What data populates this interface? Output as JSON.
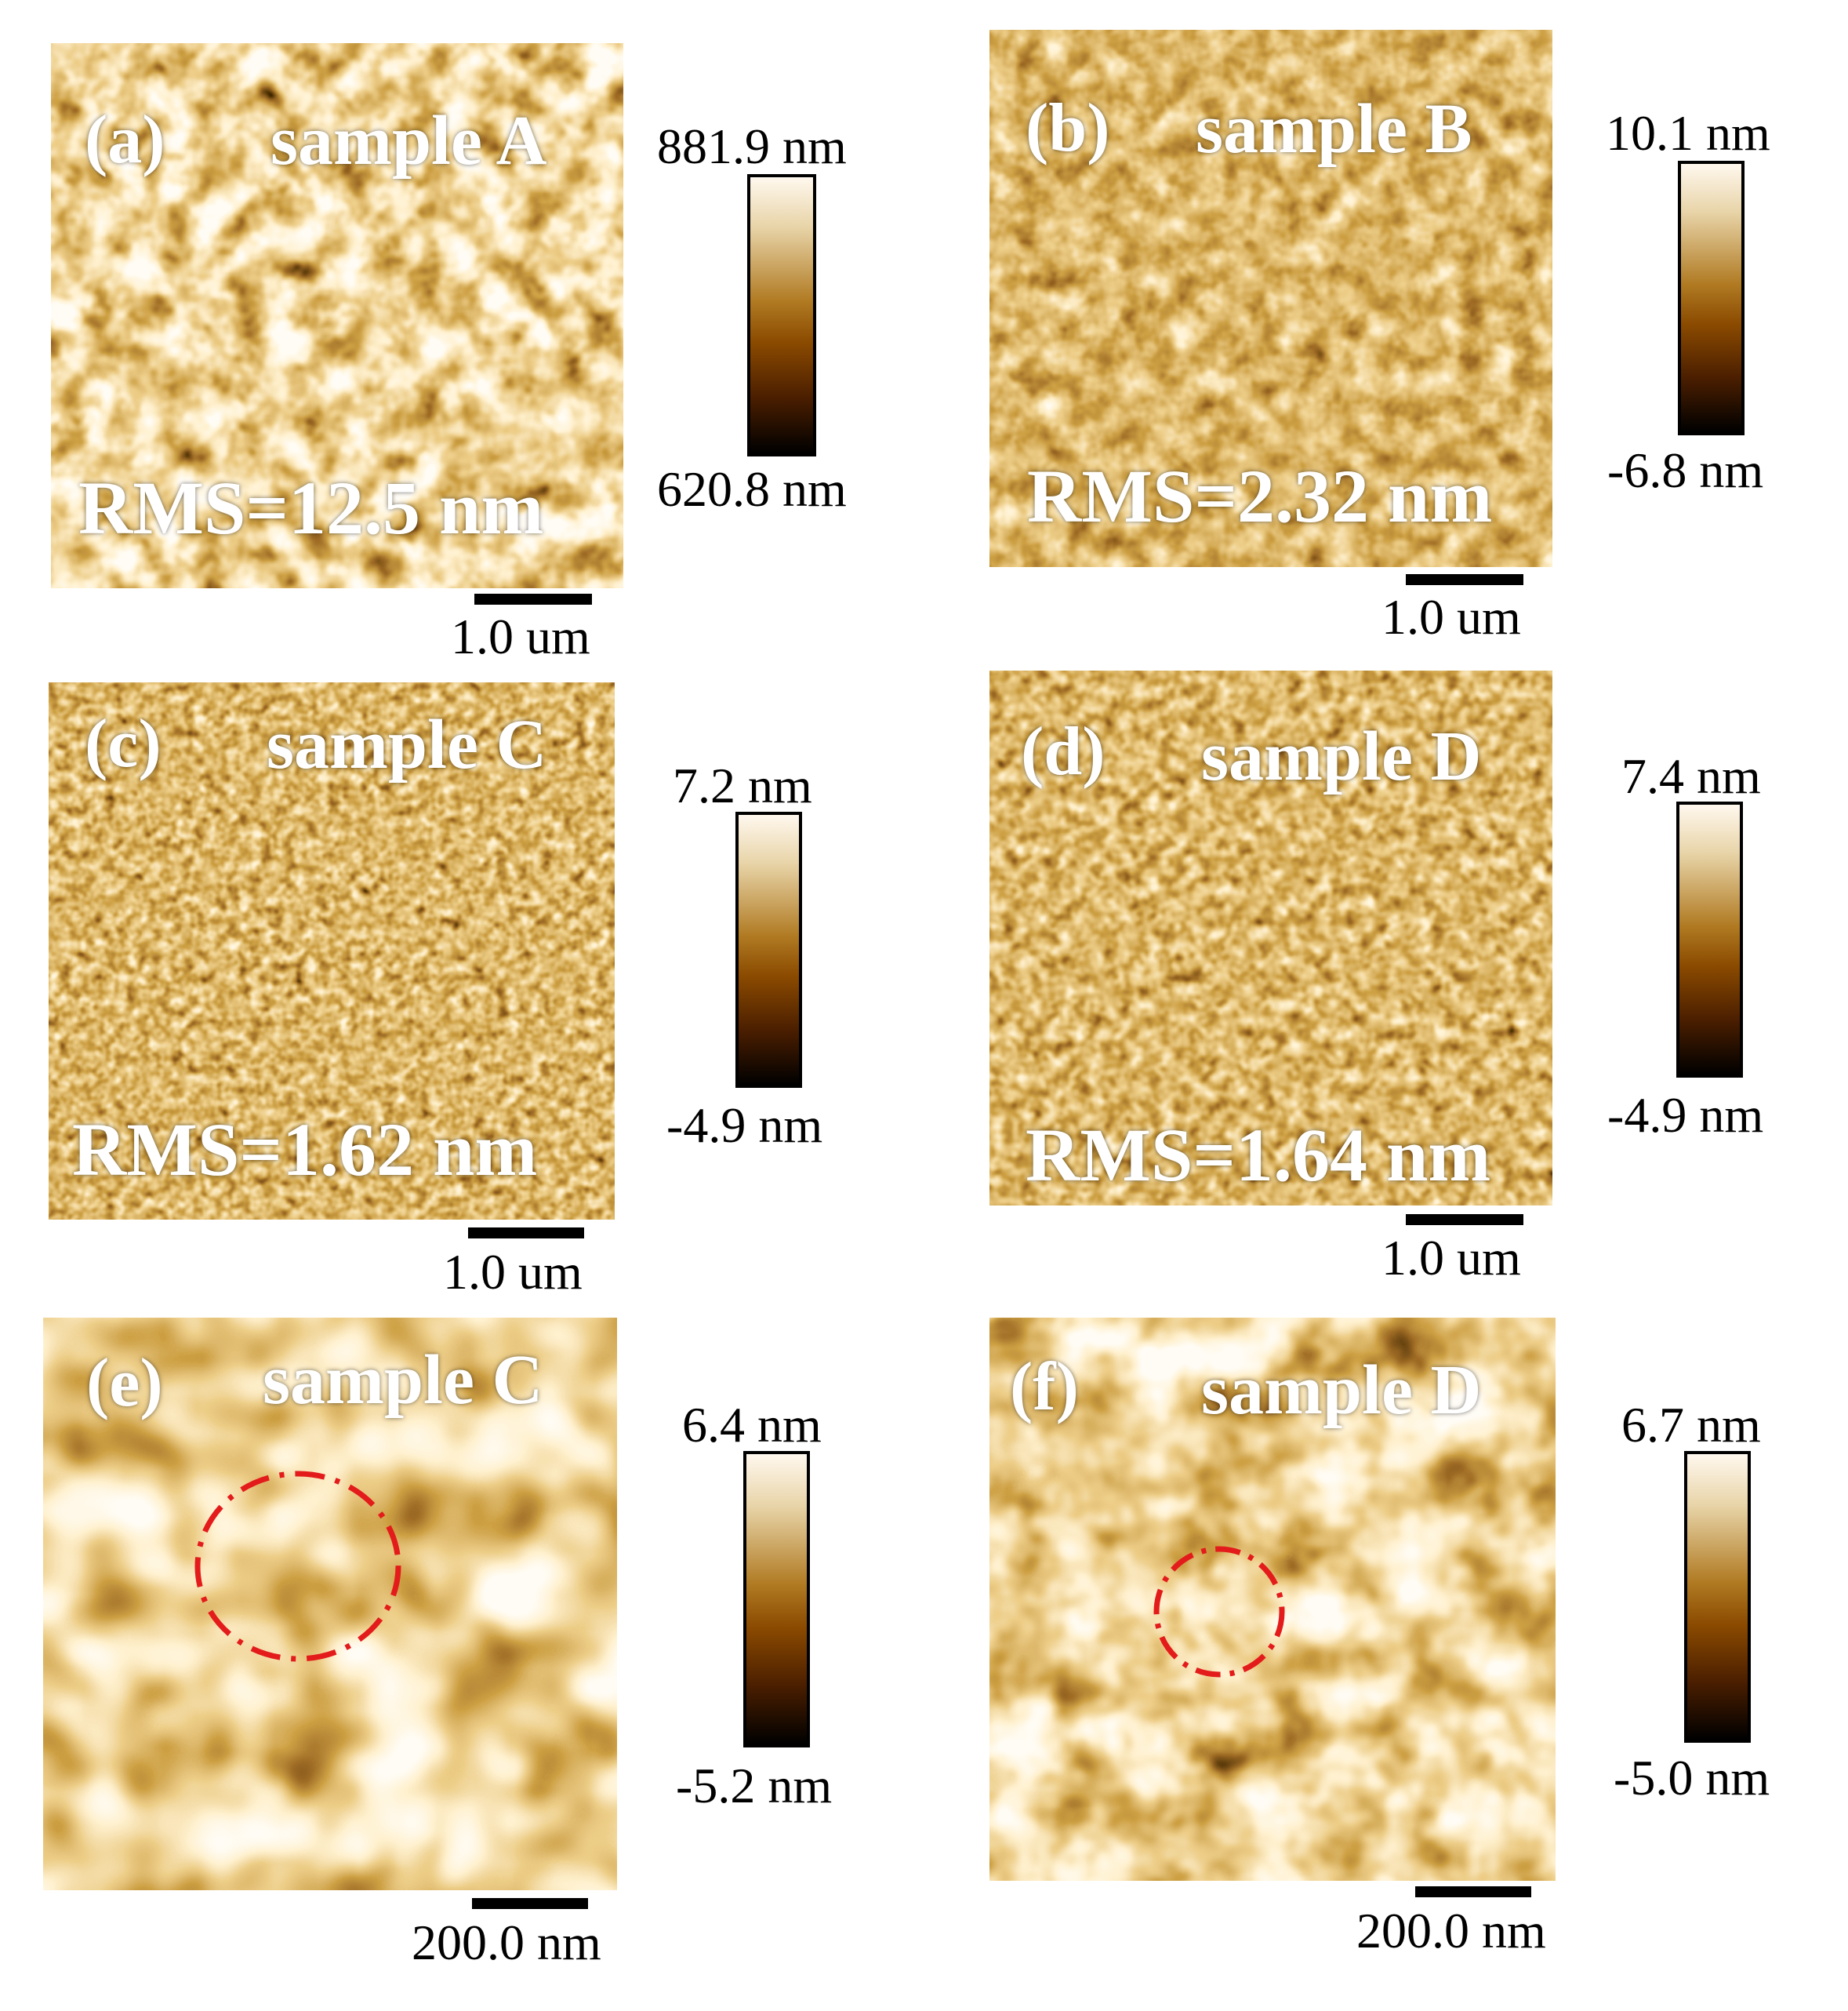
{
  "colors": {
    "afm_dark": "#1a0a00",
    "afm_mid": "#8a4a00",
    "afm_light": "#fff8ee",
    "marker": "#e31b1b"
  },
  "panels": [
    {
      "label": "(a)",
      "sample": "sample A",
      "rms": "RMS=12.5 nm",
      "cbar_max": "881.9 nm",
      "cbar_min": "620.8 nm",
      "scale": "1.0 um",
      "marker_circle": false
    },
    {
      "label": "(b)",
      "sample": "sample B",
      "rms": "RMS=2.32 nm",
      "cbar_max": "10.1 nm",
      "cbar_min": "-6.8 nm",
      "scale": "1.0 um",
      "marker_circle": false
    },
    {
      "label": "(c)",
      "sample": "sample C",
      "rms": "RMS=1.62 nm",
      "cbar_max": "7.2 nm",
      "cbar_min": "-4.9 nm",
      "scale": "1.0 um",
      "marker_circle": false
    },
    {
      "label": "(d)",
      "sample": "sample D",
      "rms": "RMS=1.64 nm",
      "cbar_max": "7.4 nm",
      "cbar_min": "-4.9 nm",
      "scale": "1.0 um",
      "marker_circle": false
    },
    {
      "label": "(e)",
      "sample": "sample C",
      "rms": "",
      "cbar_max": "6.4 nm",
      "cbar_min": "-5.2 nm",
      "scale": "200.0 nm",
      "marker_circle": true
    },
    {
      "label": "(f)",
      "sample": "sample D",
      "rms": "",
      "cbar_max": "6.7 nm",
      "cbar_min": "-5.0 nm",
      "scale": "200.0 nm",
      "marker_circle": true
    }
  ]
}
